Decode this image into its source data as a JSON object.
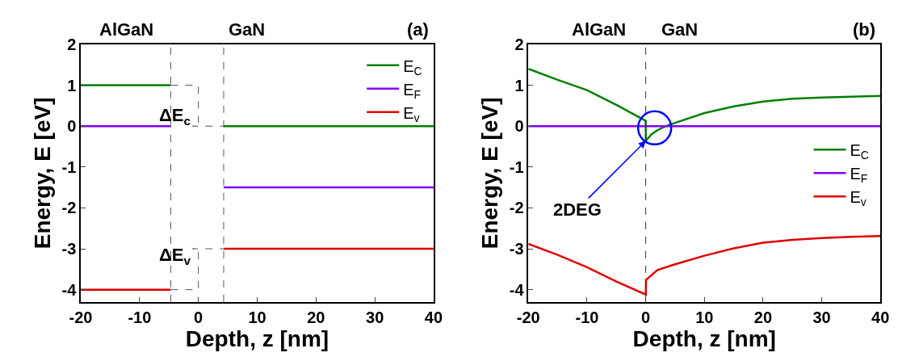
{
  "chart_data": [
    {
      "type": "line",
      "title": "(a)",
      "xlabel": "Depth, z [nm]",
      "ylabel": "Energy, E [eV]",
      "xlim": [
        -20,
        40
      ],
      "ylim": [
        -4.3,
        2
      ],
      "xticks": [
        -20,
        -10,
        0,
        10,
        20,
        30,
        40
      ],
      "yticks": [
        -4,
        -3,
        -2,
        -1,
        0,
        1,
        2
      ],
      "legend": "top right",
      "annotations": [
        "AlGaN",
        "GaN",
        "ΔE$_{c}$",
        "ΔE$_{v}$"
      ],
      "ref_lines": [
        {
          "axis": "x",
          "value": -4.7,
          "color": "#555555",
          "line_style": "dashed"
        },
        {
          "axis": "x",
          "value": 4.3,
          "color": "#555555",
          "line_style": "dashed"
        }
      ],
      "series": [
        {
          "name": "E$_{C}$",
          "color": "#008000",
          "x": [
            -20,
            -4.7,
            0,
            4.3,
            40
          ],
          "values": [
            1,
            1,
            null,
            0,
            0
          ]
        },
        {
          "name": "E$_{F}$",
          "color": "#8000ff",
          "x": [
            -20,
            -4.7,
            0,
            4.3,
            40
          ],
          "values": [
            0,
            0,
            null,
            -1.5,
            -1.5
          ]
        },
        {
          "name": "E$_{v}$",
          "color": "#e00000",
          "x": [
            -20,
            -4.7,
            0,
            4.3,
            40
          ],
          "values": [
            -4,
            -4,
            null,
            -3,
            -3
          ]
        },
        {
          "color": "#555555",
          "line_style": "dashed",
          "x": [
            -4.7,
            0,
            0,
            0,
            -1,
            4.3
          ],
          "values": [
            1,
            1,
            1,
            0,
            0,
            0
          ]
        },
        {
          "color": "#555555",
          "line_style": "dashed",
          "x": [
            -4.7,
            0,
            0,
            0,
            -1,
            4.3
          ],
          "values": [
            -4,
            -4,
            -4,
            -3,
            -3,
            -3
          ]
        }
      ]
    },
    {
      "type": "line",
      "title": "(b)",
      "xlabel": "Depth, z [nm]",
      "ylabel": "Energy, E [eV]",
      "xlim": [
        -20,
        40
      ],
      "ylim": [
        -4.3,
        2
      ],
      "xticks": [
        -20,
        -10,
        0,
        10,
        20,
        30,
        40
      ],
      "yticks": [
        -4,
        -3,
        -2,
        -1,
        0,
        1,
        2
      ],
      "legend": "right",
      "annotations": [
        "AlGaN",
        "GaN",
        {
          "text": "2DEG",
          "x": 0.02,
          "y": -0.36
        }
      ],
      "ref_lines": [
        {
          "axis": "x",
          "value": 0,
          "color": "#333333",
          "line_style": "dashed"
        }
      ],
      "series": [
        {
          "name": "E$_{C}$",
          "color": "#008000",
          "x": [
            -20,
            -15,
            -10,
            -5,
            0,
            0.02,
            1,
            2,
            3,
            4,
            5,
            10,
            15,
            20,
            25,
            30,
            35,
            40
          ],
          "values": [
            1.4,
            1.13,
            0.88,
            0.52,
            0.13,
            -0.36,
            -0.2,
            -0.1,
            -0.03,
            0.03,
            0.08,
            0.32,
            0.48,
            0.6,
            0.67,
            0.7,
            0.72,
            0.74
          ]
        },
        {
          "name": "E$_{F}$",
          "color": "#8000ff",
          "x": [
            -20,
            40
          ],
          "values": [
            0,
            0
          ]
        },
        {
          "name": "E$_{v}$",
          "color": "#e00000",
          "x": [
            -20,
            -15,
            -10,
            -5,
            0,
            0.02,
            0.05,
            2,
            5,
            10,
            15,
            20,
            25,
            30,
            35,
            40
          ],
          "values": [
            -2.88,
            -3.15,
            -3.45,
            -3.8,
            -4.12,
            -4.12,
            -3.76,
            -3.52,
            -3.38,
            -3.17,
            -2.99,
            -2.85,
            -2.78,
            -2.74,
            -2.71,
            -2.69
          ]
        }
      ]
    }
  ]
}
